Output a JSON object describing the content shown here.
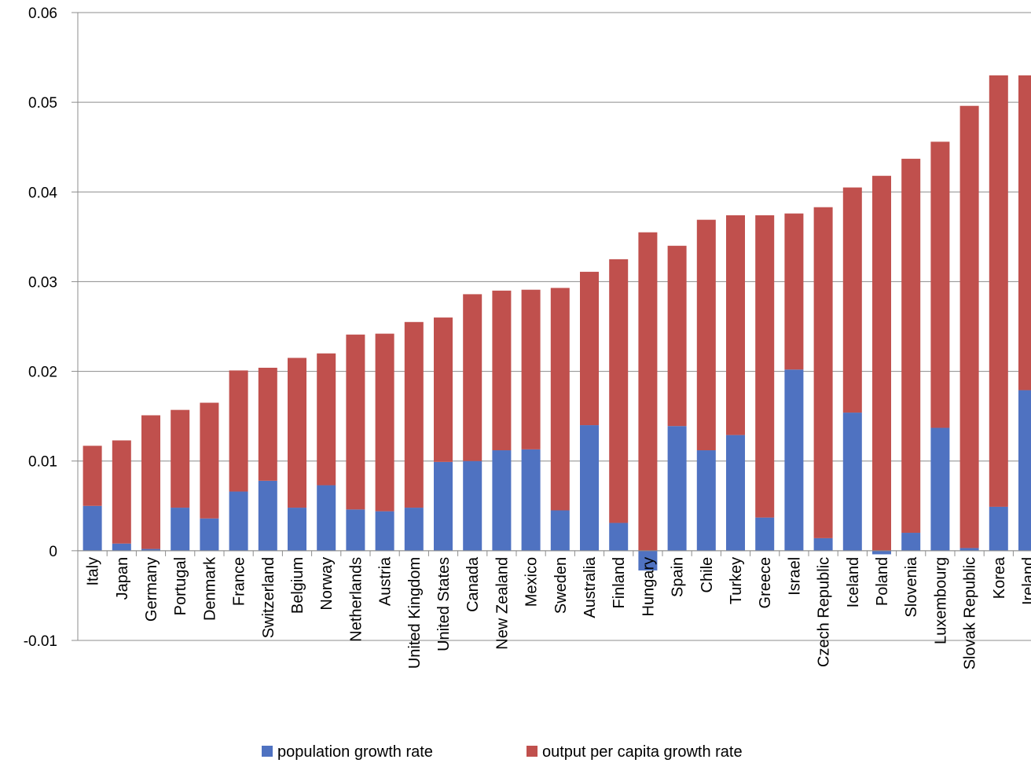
{
  "chart_data": {
    "type": "bar",
    "stacked": true,
    "title": "",
    "xlabel": "",
    "ylabel": "",
    "ylim": [
      -0.01,
      0.06
    ],
    "yticks": [
      "-0.01",
      "0",
      "0.01",
      "0.02",
      "0.03",
      "0.04",
      "0.05",
      "0.06"
    ],
    "grid": true,
    "legend_position": "bottom",
    "categories": [
      "Italy",
      "Japan",
      "Germany",
      "Portugal",
      "Denmark",
      "France",
      "Switzerland",
      "Belgium",
      "Norway",
      "Netherlands",
      "Austria",
      "United Kingdom",
      "United States",
      "Canada",
      "New Zealand",
      "Mexico",
      "Sweden",
      "Australia",
      "Finland",
      "Hungary",
      "Spain",
      "Chile",
      "Turkey",
      "Greece",
      "Israel",
      "Czech Republic",
      "Iceland",
      "Poland",
      "Slovenia",
      "Luxembourg",
      "Slovak Republic",
      "Korea",
      "Ireland"
    ],
    "series": [
      {
        "name": "population growth rate",
        "color": "#4f72c1",
        "values": [
          0.005,
          0.0008,
          0.0002,
          0.0048,
          0.0036,
          0.0066,
          0.0078,
          0.0048,
          0.0073,
          0.0046,
          0.0044,
          0.0048,
          0.0099,
          0.01,
          0.0112,
          0.0113,
          0.0045,
          0.014,
          0.0031,
          -0.0022,
          0.0139,
          0.0112,
          0.0129,
          0.0037,
          0.0202,
          0.0014,
          0.0154,
          -0.0004,
          0.002,
          0.0137,
          0.0003,
          0.0049,
          0.0179
        ]
      },
      {
        "name": "output per capita growth rate",
        "color": "#c0504d",
        "values": [
          0.0067,
          0.0115,
          0.0149,
          0.0109,
          0.0129,
          0.0135,
          0.0126,
          0.0167,
          0.0147,
          0.0195,
          0.0198,
          0.0207,
          0.0161,
          0.0186,
          0.0178,
          0.0178,
          0.0248,
          0.0171,
          0.0294,
          0.0355,
          0.0201,
          0.0257,
          0.0245,
          0.0337,
          0.0174,
          0.0369,
          0.0251,
          0.0418,
          0.0417,
          0.0319,
          0.0493,
          0.0481,
          0.0351
        ]
      }
    ]
  }
}
